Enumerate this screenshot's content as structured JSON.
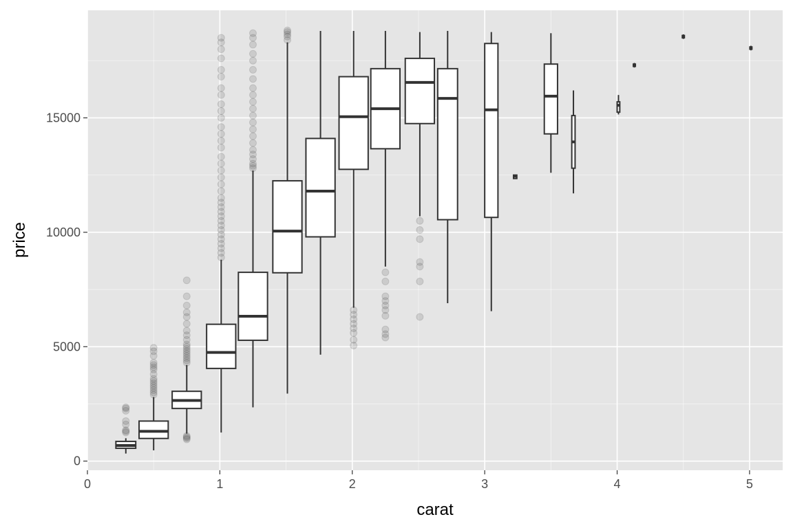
{
  "chart_data": {
    "type": "boxplot",
    "xlabel": "carat",
    "ylabel": "price",
    "xlim": [
      0,
      5.25
    ],
    "ylim": [
      -400,
      19700
    ],
    "x_ticks": [
      0,
      1,
      2,
      3,
      4,
      5
    ],
    "x_tick_labels": [
      "0",
      "1",
      "2",
      "3",
      "4",
      "5"
    ],
    "y_ticks": [
      0,
      5000,
      10000,
      15000
    ],
    "y_tick_labels": [
      "0",
      "5000",
      "10000",
      "15000"
    ],
    "grid": true,
    "legend": "none",
    "boxes": [
      {
        "x": 0.29,
        "width": 0.15,
        "lower_whisker": 330,
        "q1": 560,
        "median": 680,
        "q3": 860,
        "upper_whisker": 1000,
        "outliers": [
          1250,
          1300,
          1350,
          1600,
          1750,
          2200,
          2300,
          2350
        ]
      },
      {
        "x": 0.5,
        "width": 0.22,
        "lower_whisker": 470,
        "q1": 990,
        "median": 1300,
        "q3": 1750,
        "upper_whisker": 2800,
        "outliers": [
          2900,
          3000,
          3100,
          3200,
          3300,
          3400,
          3500,
          3600,
          3800,
          4000,
          4100,
          4200,
          4300,
          4600,
          4800,
          4950
        ]
      },
      {
        "x": 0.75,
        "width": 0.22,
        "lower_whisker": 1200,
        "q1": 2300,
        "median": 2650,
        "q3": 3050,
        "upper_whisker": 4200,
        "outliers": [
          950,
          1000,
          1050,
          1100,
          4300,
          4400,
          4500,
          4600,
          4700,
          4800,
          4900,
          5000,
          5100,
          5300,
          5500,
          5700,
          6000,
          6300,
          6500,
          6800,
          7200,
          7900
        ]
      },
      {
        "x": 1.01,
        "width": 0.22,
        "lower_whisker": 1250,
        "q1": 4050,
        "median": 4750,
        "q3": 5980,
        "upper_whisker": 8800,
        "outliers": [
          8900,
          9100,
          9300,
          9500,
          9700,
          9900,
          10100,
          10300,
          10500,
          10700,
          10900,
          11100,
          11300,
          11500,
          11800,
          12100,
          12400,
          12700,
          13000,
          13300,
          13700,
          14000,
          14300,
          14600,
          15000,
          15300,
          15600,
          16000,
          16300,
          16800,
          17100,
          17600,
          18000,
          18300,
          18500
        ]
      },
      {
        "x": 1.25,
        "width": 0.22,
        "lower_whisker": 2350,
        "q1": 5280,
        "median": 6330,
        "q3": 8250,
        "upper_whisker": 12700,
        "outliers": [
          12800,
          12900,
          13000,
          13200,
          13400,
          13600,
          13900,
          14200,
          14500,
          14800,
          15100,
          15400,
          15700,
          16000,
          16300,
          16700,
          17100,
          17500,
          17800,
          18200,
          18500,
          18700
        ]
      },
      {
        "x": 1.51,
        "width": 0.22,
        "lower_whisker": 2950,
        "q1": 8230,
        "median": 10050,
        "q3": 12250,
        "upper_whisker": 18300,
        "outliers": [
          18400,
          18550,
          18650,
          18750,
          18820
        ]
      },
      {
        "x": 1.76,
        "width": 0.22,
        "lower_whisker": 4650,
        "q1": 9800,
        "median": 11800,
        "q3": 14100,
        "upper_whisker": 18800,
        "outliers": []
      },
      {
        "x": 2.01,
        "width": 0.22,
        "lower_whisker": 6700,
        "q1": 12750,
        "median": 15050,
        "q3": 16800,
        "upper_whisker": 18800,
        "outliers": [
          5050,
          5300,
          5600,
          5800,
          6000,
          6200,
          6400,
          6600
        ]
      },
      {
        "x": 2.25,
        "width": 0.22,
        "lower_whisker": 8500,
        "q1": 13650,
        "median": 15400,
        "q3": 17150,
        "upper_whisker": 18800,
        "outliers": [
          5400,
          5550,
          5750,
          6350,
          6600,
          6800,
          7000,
          7200,
          7850,
          8250
        ]
      },
      {
        "x": 2.51,
        "width": 0.22,
        "lower_whisker": 10700,
        "q1": 14750,
        "median": 16550,
        "q3": 17600,
        "upper_whisker": 18750,
        "outliers": [
          6300,
          7850,
          8500,
          8700,
          9700,
          10100,
          10500
        ]
      },
      {
        "x": 2.72,
        "width": 0.15,
        "lower_whisker": 6900,
        "q1": 10550,
        "median": 15850,
        "q3": 17150,
        "upper_whisker": 18800,
        "outliers": []
      },
      {
        "x": 3.05,
        "width": 0.1,
        "lower_whisker": 6550,
        "q1": 10650,
        "median": 15350,
        "q3": 18250,
        "upper_whisker": 18750,
        "outliers": []
      },
      {
        "x": 3.23,
        "width": 0.025,
        "lower_whisker": 12350,
        "q1": 12350,
        "median": 12450,
        "q3": 12500,
        "upper_whisker": 12500,
        "outliers": []
      },
      {
        "x": 3.5,
        "width": 0.1,
        "lower_whisker": 12600,
        "q1": 14300,
        "median": 15950,
        "q3": 17350,
        "upper_whisker": 18700,
        "outliers": []
      },
      {
        "x": 3.67,
        "width": 0.025,
        "lower_whisker": 11700,
        "q1": 12800,
        "median": 13950,
        "q3": 15100,
        "upper_whisker": 16200,
        "outliers": []
      },
      {
        "x": 4.01,
        "width": 0.02,
        "lower_whisker": 15150,
        "q1": 15250,
        "median": 15550,
        "q3": 15700,
        "upper_whisker": 16000,
        "outliers": []
      },
      {
        "x": 4.13,
        "width": 0.01,
        "lower_whisker": 17200,
        "q1": 17250,
        "median": 17300,
        "q3": 17350,
        "upper_whisker": 17400,
        "outliers": []
      },
      {
        "x": 4.5,
        "width": 0.01,
        "lower_whisker": 18450,
        "q1": 18500,
        "median": 18550,
        "q3": 18600,
        "upper_whisker": 18650,
        "outliers": []
      },
      {
        "x": 5.01,
        "width": 0.01,
        "lower_whisker": 17950,
        "q1": 18000,
        "median": 18050,
        "q3": 18100,
        "upper_whisker": 18150,
        "outliers": []
      }
    ]
  },
  "style": {
    "panel_background": "#e5e5e5",
    "grid_major": "#ffffff",
    "box_stroke": "#333333",
    "box_fill": "#ffffff",
    "outlier_color": "#333333",
    "outlier_alpha": 0.15
  }
}
